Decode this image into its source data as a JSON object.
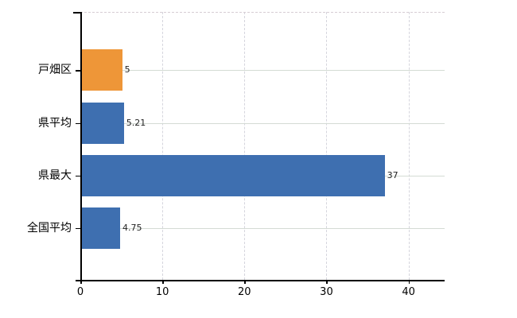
{
  "chart_data": {
    "type": "bar",
    "orientation": "horizontal",
    "title": "",
    "xlabel": "",
    "ylabel": "",
    "categories": [
      "戸畑区",
      "県平均",
      "県最大",
      "全国平均"
    ],
    "values": [
      5,
      5.21,
      37,
      4.75
    ],
    "value_labels": [
      "5",
      "5.21",
      "37",
      "4.75"
    ],
    "bar_colors": [
      "#ee9638",
      "#3e6fb0",
      "#3e6fb0",
      "#3e6fb0"
    ],
    "x_ticks": [
      0,
      10,
      20,
      30,
      40
    ],
    "x_tick_labels": [
      "0",
      "10",
      "20",
      "30",
      "40"
    ],
    "xlim": [
      0,
      44.4
    ],
    "grid": true,
    "grid_vertical_style": "dashed",
    "grid_horizontal_style": "solid",
    "legend": false
  },
  "colors": {
    "bar_blue": "#3e6fb0",
    "bar_orange": "#ee9638",
    "grid_vertical": "#d5d5dd",
    "grid_horizontal": "#d4dbd4",
    "plot_top_border": "#d7cdd4",
    "axis": "#000000",
    "background": "#ffffff",
    "value_text": "#1f1f1f",
    "label_text": "#000000"
  }
}
